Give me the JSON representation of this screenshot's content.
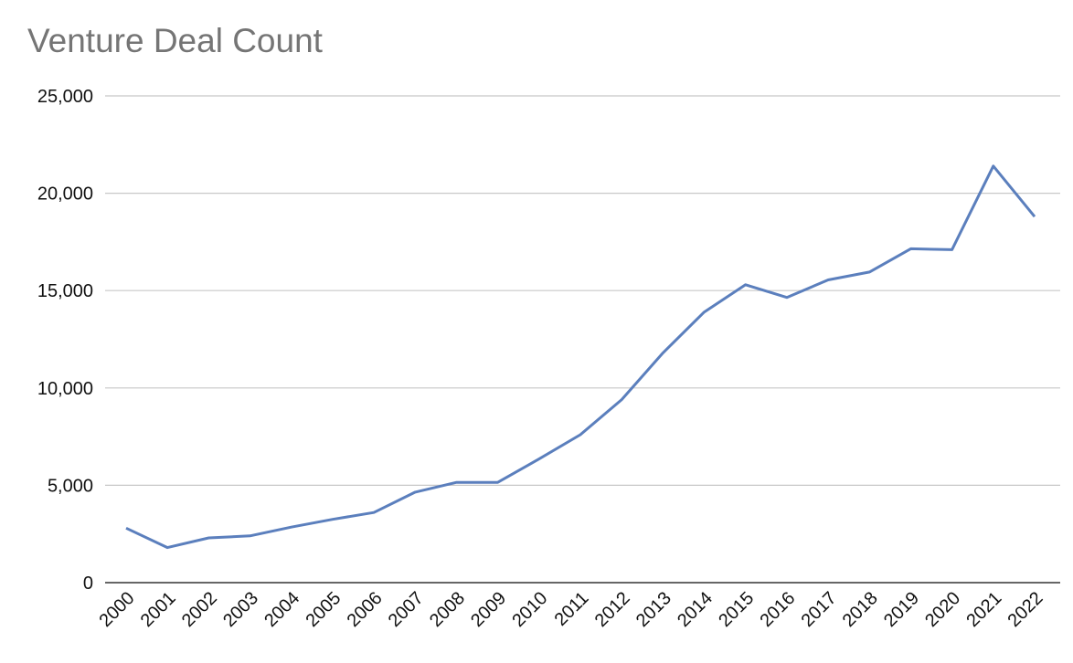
{
  "chart_data": {
    "type": "line",
    "title": "Venture Deal Count",
    "xlabel": "",
    "ylabel": "",
    "categories": [
      "2000",
      "2001",
      "2002",
      "2003",
      "2004",
      "2005",
      "2006",
      "2007",
      "2008",
      "2009",
      "2010",
      "2011",
      "2012",
      "2013",
      "2014",
      "2015",
      "2016",
      "2017",
      "2018",
      "2019",
      "2020",
      "2021",
      "2022"
    ],
    "series": [
      {
        "values": [
          2800,
          1800,
          2300,
          2400,
          2850,
          3250,
          3600,
          4650,
          5150,
          5150,
          6350,
          7600,
          9400,
          11800,
          13900,
          15300,
          14650,
          15550,
          15950,
          17150,
          17100,
          21400,
          18800
        ]
      }
    ],
    "ylim": [
      0,
      25000
    ],
    "yticks": [
      "0",
      "5,000",
      "10,000",
      "15,000",
      "20,000",
      "25,000"
    ],
    "ytick_values": [
      0,
      5000,
      10000,
      15000,
      20000,
      25000
    ],
    "grid": true,
    "legend": "none",
    "colors": {
      "line": "#5b7fbd",
      "grid": "#c8c8c8",
      "axis": "#333333"
    }
  }
}
